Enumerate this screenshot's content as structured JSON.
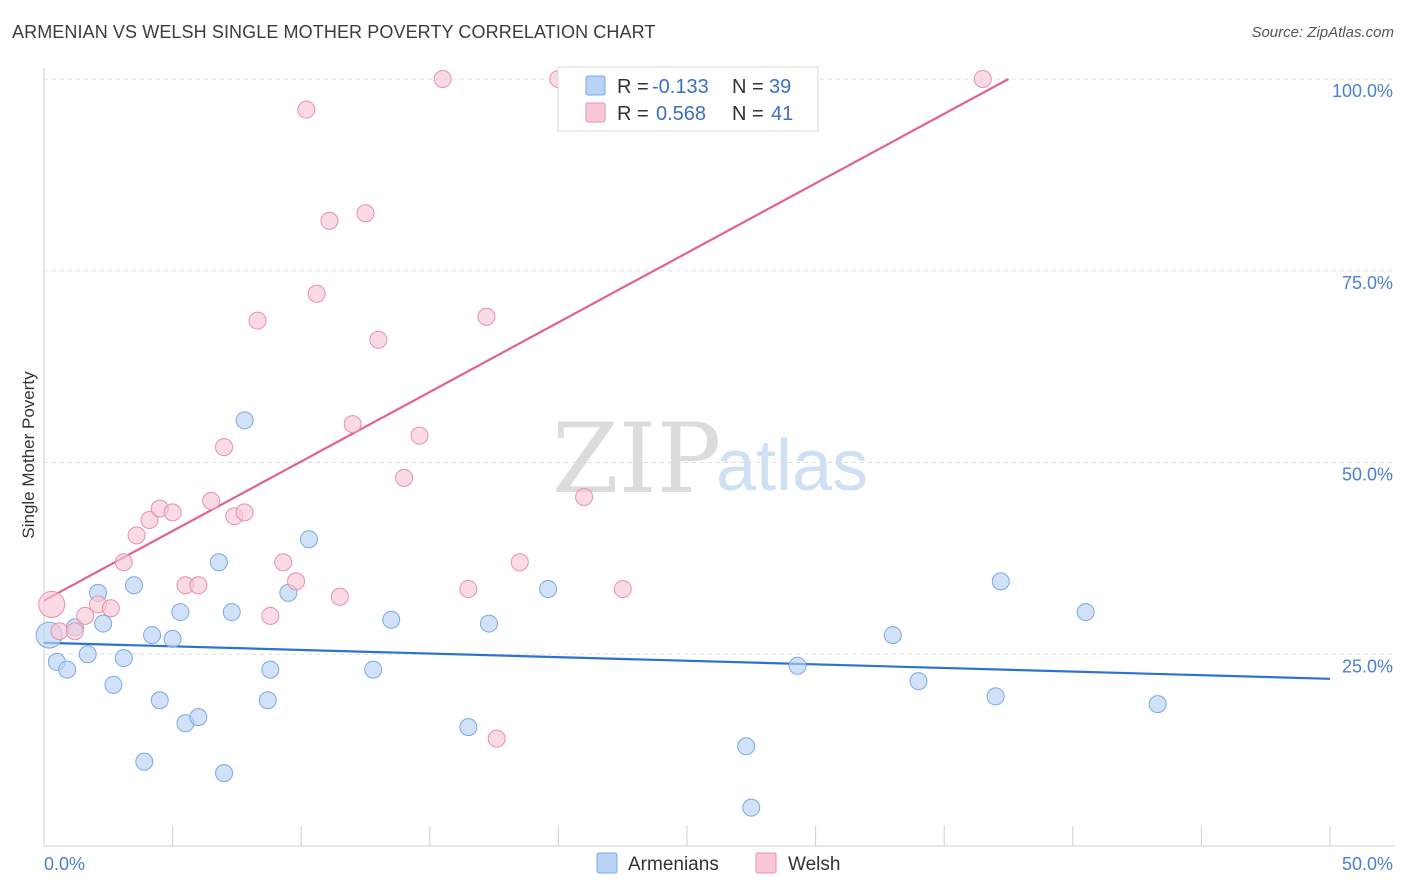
{
  "title": "ARMENIAN VS WELSH SINGLE MOTHER POVERTY CORRELATION CHART",
  "source": "Source: ZipAtlas.com",
  "watermark": {
    "zip": "ZIP",
    "atlas": "atlas"
  },
  "legend_top": [
    {
      "r_label": "R =",
      "r_value": "-0.133",
      "n_label": "N =",
      "n_value": "39",
      "color": "#b8d3f5",
      "edge": "#7aa8e6"
    },
    {
      "r_label": "R =",
      "r_value": "0.568",
      "n_label": "N =",
      "n_value": "41",
      "color": "#f8c8d6",
      "edge": "#e890ab"
    }
  ],
  "legend_bottom": [
    {
      "label": "Armenians",
      "color": "#b8d3f5",
      "edge": "#7aa8e6"
    },
    {
      "label": "Welsh",
      "color": "#f8c8d6",
      "edge": "#e890ab"
    }
  ],
  "chart_data": {
    "type": "scatter",
    "title": "ARMENIAN VS WELSH SINGLE MOTHER POVERTY CORRELATION CHART",
    "xlabel": "",
    "ylabel": "Single Mother Poverty",
    "xlim": [
      0,
      50
    ],
    "ylim": [
      0,
      100
    ],
    "x_tick_labels": [
      "0.0%",
      "50.0%"
    ],
    "y_tick_labels": [
      "25.0%",
      "50.0%",
      "75.0%",
      "100.0%"
    ],
    "y_ticks": [
      25,
      50,
      75,
      100
    ],
    "grid": true,
    "colors": {
      "Armenians": "#b8d3f5",
      "Armenians_edge": "#7aa8e6",
      "Armenians_line": "#2e72cf",
      "Welsh": "#f8c8d6",
      "Welsh_edge": "#e890ab",
      "Welsh_line": "#e2628c"
    },
    "series": [
      {
        "name": "Armenians",
        "points": [
          [
            0.2,
            27.5
          ],
          [
            0.5,
            24.0
          ],
          [
            0.9,
            23.0
          ],
          [
            1.2,
            28.5
          ],
          [
            1.7,
            25.0
          ],
          [
            2.1,
            33.0
          ],
          [
            2.3,
            29.0
          ],
          [
            2.7,
            21.0
          ],
          [
            3.1,
            24.5
          ],
          [
            3.5,
            34.0
          ],
          [
            3.9,
            11.0
          ],
          [
            4.2,
            27.5
          ],
          [
            4.5,
            19.0
          ],
          [
            5.0,
            27.0
          ],
          [
            5.3,
            30.5
          ],
          [
            5.5,
            16.0
          ],
          [
            6.0,
            16.8
          ],
          [
            6.8,
            37.0
          ],
          [
            7.0,
            9.5
          ],
          [
            7.3,
            30.5
          ],
          [
            7.8,
            55.5
          ],
          [
            8.7,
            19.0
          ],
          [
            8.8,
            23.0
          ],
          [
            9.5,
            33.0
          ],
          [
            10.3,
            40.0
          ],
          [
            12.8,
            23.0
          ],
          [
            13.5,
            29.5
          ],
          [
            16.5,
            15.5
          ],
          [
            17.3,
            29.0
          ],
          [
            19.6,
            33.5
          ],
          [
            27.3,
            13.0
          ],
          [
            27.5,
            5.0
          ],
          [
            29.3,
            23.5
          ],
          [
            33.0,
            27.5
          ],
          [
            34.0,
            21.5
          ],
          [
            37.0,
            19.5
          ],
          [
            37.2,
            34.5
          ],
          [
            40.5,
            30.5
          ],
          [
            43.3,
            18.5
          ]
        ],
        "trend": [
          [
            0,
            26.5
          ],
          [
            50,
            21.8
          ]
        ]
      },
      {
        "name": "Welsh",
        "points": [
          [
            0.3,
            31.5
          ],
          [
            0.6,
            28.0
          ],
          [
            1.2,
            28.0
          ],
          [
            1.6,
            30.0
          ],
          [
            2.1,
            31.5
          ],
          [
            2.6,
            31.0
          ],
          [
            3.1,
            37.0
          ],
          [
            3.6,
            40.5
          ],
          [
            4.1,
            42.5
          ],
          [
            4.5,
            44.0
          ],
          [
            5.0,
            43.5
          ],
          [
            5.5,
            34.0
          ],
          [
            6.0,
            34.0
          ],
          [
            6.5,
            45.0
          ],
          [
            7.0,
            52.0
          ],
          [
            7.4,
            43.0
          ],
          [
            7.8,
            43.5
          ],
          [
            8.3,
            68.5
          ],
          [
            8.8,
            30.0
          ],
          [
            9.3,
            37.0
          ],
          [
            9.8,
            34.5
          ],
          [
            10.2,
            96.0
          ],
          [
            10.6,
            72.0
          ],
          [
            11.1,
            81.5
          ],
          [
            11.5,
            32.5
          ],
          [
            12.0,
            55.0
          ],
          [
            12.5,
            82.5
          ],
          [
            13.0,
            66.0
          ],
          [
            14.0,
            48.0
          ],
          [
            14.6,
            53.5
          ],
          [
            15.5,
            100.0
          ],
          [
            16.5,
            33.5
          ],
          [
            17.2,
            69.0
          ],
          [
            17.6,
            14.0
          ],
          [
            18.5,
            37.0
          ],
          [
            20.0,
            100.0
          ],
          [
            21.0,
            45.5
          ],
          [
            22.5,
            33.5
          ],
          [
            24.0,
            100.0
          ],
          [
            25.5,
            100.0
          ],
          [
            36.5,
            100.0
          ]
        ],
        "trend": [
          [
            0,
            32.0
          ],
          [
            37.5,
            100.0
          ]
        ]
      }
    ]
  }
}
